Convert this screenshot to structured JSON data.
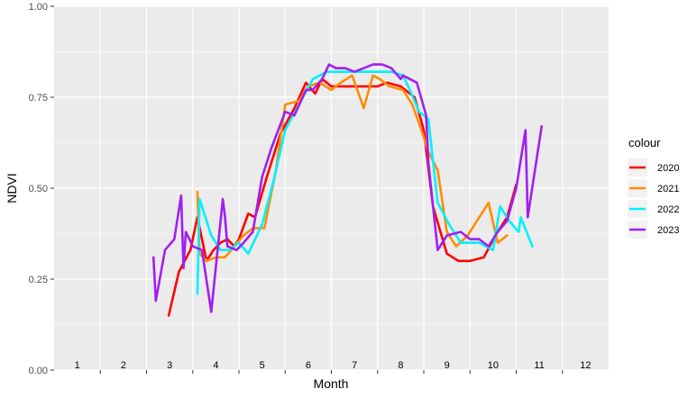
{
  "chart_data": {
    "type": "line",
    "xlabel": "Month",
    "ylabel": "NDVI",
    "xlim": [
      1,
      13
    ],
    "ylim": [
      0,
      1
    ],
    "y_ticks": [
      "0.00",
      "0.25",
      "0.50",
      "0.75",
      "1.00"
    ],
    "y_tick_values": [
      0,
      0.25,
      0.5,
      0.75,
      1
    ],
    "month_labels": [
      "1",
      "2",
      "3",
      "4",
      "5",
      "6",
      "7",
      "8",
      "9",
      "10",
      "11",
      "12"
    ],
    "grid": true,
    "panel_color": "#ebebeb",
    "legend": {
      "title": "colour",
      "position": "right"
    },
    "series": [
      {
        "name": "2020",
        "color": "#ff0000",
        "x": [
          3.48,
          3.7,
          3.95,
          4.1,
          4.3,
          4.45,
          4.6,
          4.75,
          4.9,
          5.0,
          5.2,
          5.35,
          5.6,
          5.9,
          6.2,
          6.45,
          6.65,
          6.8,
          7.0,
          7.2,
          7.5,
          7.8,
          8.0,
          8.2,
          8.5,
          8.8,
          9.0,
          9.2,
          9.5,
          9.75,
          10.0,
          10.3,
          10.55,
          10.8,
          11.0
        ],
        "y": [
          0.15,
          0.27,
          0.33,
          0.42,
          0.3,
          0.33,
          0.35,
          0.36,
          0.34,
          0.36,
          0.43,
          0.42,
          0.53,
          0.65,
          0.72,
          0.79,
          0.76,
          0.8,
          0.78,
          0.78,
          0.78,
          0.78,
          0.78,
          0.79,
          0.78,
          0.75,
          0.66,
          0.45,
          0.32,
          0.3,
          0.3,
          0.31,
          0.37,
          0.42,
          0.51
        ]
      },
      {
        "name": "2021",
        "color": "#ff8c00",
        "x": [
          4.1,
          4.15,
          4.3,
          4.5,
          4.7,
          4.9,
          5.1,
          5.3,
          5.55,
          5.8,
          6.0,
          6.3,
          6.5,
          6.75,
          7.0,
          7.2,
          7.45,
          7.7,
          7.9,
          8.05,
          8.25,
          8.55,
          8.75,
          8.95,
          9.1,
          9.3,
          9.5,
          9.7,
          9.95,
          10.2,
          10.4,
          10.6,
          10.8
        ],
        "y": [
          0.49,
          0.32,
          0.3,
          0.31,
          0.31,
          0.34,
          0.37,
          0.39,
          0.39,
          0.55,
          0.73,
          0.74,
          0.78,
          0.79,
          0.77,
          0.79,
          0.81,
          0.72,
          0.81,
          0.8,
          0.78,
          0.77,
          0.73,
          0.66,
          0.6,
          0.55,
          0.38,
          0.34,
          0.37,
          0.42,
          0.46,
          0.35,
          0.37
        ]
      },
      {
        "name": "2022",
        "color": "#00f0ff",
        "x": [
          4.1,
          4.15,
          4.4,
          4.6,
          4.8,
          5.0,
          5.2,
          5.5,
          5.75,
          6.0,
          6.3,
          6.6,
          6.9,
          7.1,
          7.3,
          7.6,
          7.9,
          8.1,
          8.3,
          8.55,
          8.7,
          8.9,
          9.1,
          9.3,
          9.55,
          9.8,
          10.0,
          10.2,
          10.35,
          10.5,
          10.65,
          10.85,
          11.05,
          11.1,
          11.35
        ],
        "y": [
          0.21,
          0.47,
          0.37,
          0.33,
          0.33,
          0.35,
          0.32,
          0.4,
          0.52,
          0.66,
          0.73,
          0.8,
          0.82,
          0.82,
          0.82,
          0.82,
          0.82,
          0.82,
          0.82,
          0.81,
          0.77,
          0.71,
          0.69,
          0.46,
          0.4,
          0.35,
          0.35,
          0.35,
          0.34,
          0.33,
          0.45,
          0.41,
          0.38,
          0.42,
          0.34
        ]
      },
      {
        "name": "2023",
        "color": "#a020f0",
        "x": [
          3.15,
          3.2,
          3.4,
          3.6,
          3.75,
          3.8,
          3.85,
          4.0,
          4.2,
          4.4,
          4.65,
          4.7,
          4.75,
          4.95,
          5.1,
          5.3,
          5.5,
          5.7,
          6.0,
          6.2,
          6.45,
          6.6,
          6.8,
          6.95,
          7.1,
          7.3,
          7.5,
          7.7,
          7.9,
          8.1,
          8.3,
          8.5,
          8.55,
          8.7,
          8.85,
          9.05,
          9.1,
          9.3,
          9.5,
          9.8,
          10.0,
          10.2,
          10.4,
          10.6,
          10.8,
          11.0,
          11.2,
          11.25,
          11.55
        ],
        "y": [
          0.31,
          0.19,
          0.33,
          0.36,
          0.48,
          0.28,
          0.38,
          0.34,
          0.33,
          0.16,
          0.47,
          0.42,
          0.34,
          0.33,
          0.35,
          0.38,
          0.53,
          0.61,
          0.71,
          0.7,
          0.77,
          0.77,
          0.8,
          0.84,
          0.83,
          0.83,
          0.82,
          0.83,
          0.84,
          0.84,
          0.83,
          0.8,
          0.81,
          0.8,
          0.79,
          0.7,
          0.57,
          0.33,
          0.37,
          0.38,
          0.36,
          0.36,
          0.34,
          0.38,
          0.41,
          0.5,
          0.66,
          0.42,
          0.67
        ]
      }
    ]
  }
}
